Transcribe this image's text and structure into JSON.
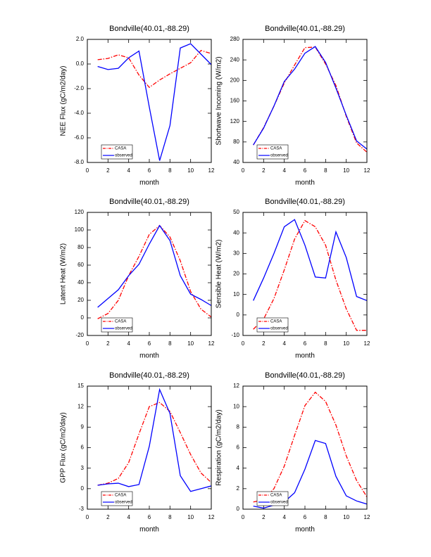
{
  "chart_data": [
    {
      "type": "line",
      "title": "Bondville(40.01,-88.29)",
      "x_label": "month",
      "y_label": "NEE Flux (gC/m2/day)",
      "x": [
        1,
        2,
        3,
        4,
        5,
        6,
        7,
        8,
        9,
        10,
        11,
        12
      ],
      "xlim": [
        0,
        12
      ],
      "xticks": [
        0,
        2,
        4,
        6,
        8,
        10,
        12
      ],
      "ylim": [
        -8,
        2
      ],
      "yticks": [
        {
          "value": -8,
          "label": "-8.0"
        },
        {
          "value": -6,
          "label": "-6.0"
        },
        {
          "value": -4,
          "label": "-4.0"
        },
        {
          "value": -2,
          "label": "-2.0"
        },
        {
          "value": 0,
          "label": "0.0"
        },
        {
          "value": 2,
          "label": "2.0"
        }
      ],
      "legend": "lower left",
      "series": [
        {
          "name": "CASA",
          "color": "#ff0000",
          "linestyle": "dashed",
          "values": [
            0.35,
            0.45,
            0.75,
            0.5,
            -0.9,
            -1.9,
            -1.3,
            -0.8,
            -0.35,
            0.1,
            1.1,
            0.85
          ]
        },
        {
          "name": "observed",
          "color": "#0000ff",
          "linestyle": "solid",
          "values": [
            -0.2,
            -0.45,
            -0.35,
            0.5,
            1.05,
            -3.5,
            -7.85,
            -5.0,
            1.3,
            1.65,
            0.8,
            -0.05
          ]
        }
      ]
    },
    {
      "type": "line",
      "title": "Bondville(40.01,-88.29)",
      "x_label": "month",
      "y_label": "Shortwave Incoming (W/m2)",
      "x": [
        1,
        2,
        3,
        4,
        5,
        6,
        7,
        8,
        9,
        10,
        11,
        12
      ],
      "xlim": [
        0,
        12
      ],
      "xticks": [
        0,
        2,
        4,
        6,
        8,
        10,
        12
      ],
      "ylim": [
        40,
        280
      ],
      "yticks": [
        40,
        80,
        120,
        160,
        200,
        240,
        280
      ],
      "legend": "lower left",
      "series": [
        {
          "name": "CASA",
          "color": "#ff0000",
          "linestyle": "dashed",
          "values": [
            74,
            108,
            150,
            195,
            230,
            264,
            265,
            232,
            190,
            130,
            78,
            60
          ]
        },
        {
          "name": "observed",
          "color": "#0000ff",
          "linestyle": "solid",
          "values": [
            74,
            107,
            150,
            198,
            222,
            253,
            266,
            235,
            185,
            132,
            82,
            66
          ]
        }
      ]
    },
    {
      "type": "line",
      "title": "Bondville(40.01,-88.29)",
      "x_label": "month",
      "y_label": "Latent Heat (W/m2)",
      "x": [
        1,
        2,
        3,
        4,
        5,
        6,
        7,
        8,
        9,
        10,
        11,
        12
      ],
      "xlim": [
        0,
        12
      ],
      "xticks": [
        0,
        2,
        4,
        6,
        8,
        10,
        12
      ],
      "ylim": [
        -20,
        120
      ],
      "yticks": [
        -20,
        0,
        20,
        40,
        60,
        80,
        100,
        120
      ],
      "legend": "lower left",
      "series": [
        {
          "name": "CASA",
          "color": "#ff0000",
          "linestyle": "dashed",
          "values": [
            -1,
            5,
            20,
            48,
            70,
            95,
            105,
            92,
            65,
            30,
            10,
            1
          ]
        },
        {
          "name": "observed",
          "color": "#0000ff",
          "linestyle": "solid",
          "values": [
            12,
            22,
            32,
            48,
            61,
            84,
            105,
            88,
            48,
            27,
            21,
            14
          ]
        }
      ]
    },
    {
      "type": "line",
      "title": "Bondville(40.01,-88.29)",
      "x_label": "month",
      "y_label": "Sensible Heat (W/m2)",
      "x": [
        1,
        2,
        3,
        4,
        5,
        6,
        7,
        8,
        9,
        10,
        11,
        12
      ],
      "xlim": [
        0,
        12
      ],
      "xticks": [
        0,
        2,
        4,
        6,
        8,
        10,
        12
      ],
      "ylim": [
        -10,
        50
      ],
      "yticks": [
        -10,
        0,
        10,
        20,
        30,
        40,
        50
      ],
      "legend": "lower left",
      "series": [
        {
          "name": "CASA",
          "color": "#ff0000",
          "linestyle": "dashed",
          "values": [
            -7,
            -2,
            8,
            22,
            37,
            46,
            43,
            34,
            17,
            3,
            -7.5,
            -7.5
          ]
        },
        {
          "name": "observed",
          "color": "#0000ff",
          "linestyle": "solid",
          "values": [
            7,
            18,
            30,
            43,
            46.5,
            34,
            18.5,
            18,
            40.5,
            28,
            9,
            7
          ]
        }
      ]
    },
    {
      "type": "line",
      "title": "Bondville(40.01,-88.29)",
      "x_label": "month",
      "y_label": "GPP Flux (gC/m2/day)",
      "x": [
        1,
        2,
        3,
        4,
        5,
        6,
        7,
        8,
        9,
        10,
        11,
        12
      ],
      "xlim": [
        0,
        12
      ],
      "xticks": [
        0,
        2,
        4,
        6,
        8,
        10,
        12
      ],
      "ylim": [
        -3,
        15
      ],
      "yticks": [
        -3,
        0,
        3,
        6,
        9,
        12,
        15
      ],
      "legend": "lower left",
      "series": [
        {
          "name": "CASA",
          "color": "#ff0000",
          "linestyle": "dashed",
          "values": [
            0.5,
            0.8,
            1.5,
            3.8,
            8,
            12,
            12.6,
            11.3,
            8.2,
            5,
            2.3,
            0.9
          ]
        },
        {
          "name": "observed",
          "color": "#0000ff",
          "linestyle": "solid",
          "values": [
            0.5,
            0.7,
            0.8,
            0.3,
            0.6,
            6.2,
            14.5,
            11,
            1.9,
            -0.4,
            0,
            0.4
          ]
        }
      ]
    },
    {
      "type": "line",
      "title": "Bondville(40.01,-88.29)",
      "x_label": "month",
      "y_label": "Respiration (gC/m2/day)",
      "x": [
        1,
        2,
        3,
        4,
        5,
        6,
        7,
        8,
        9,
        10,
        11,
        12
      ],
      "xlim": [
        0,
        12
      ],
      "xticks": [
        0,
        2,
        4,
        6,
        8,
        10,
        12
      ],
      "ylim": [
        0,
        12
      ],
      "yticks": [
        0,
        2,
        4,
        6,
        8,
        10,
        12
      ],
      "legend": "lower left",
      "series": [
        {
          "name": "CASA",
          "color": "#ff0000",
          "linestyle": "dashed",
          "values": [
            0.7,
            0.9,
            2,
            4.2,
            7.2,
            10.1,
            11.4,
            10.5,
            8.2,
            5.2,
            2.8,
            1.2
          ]
        },
        {
          "name": "observed",
          "color": "#0000ff",
          "linestyle": "solid",
          "values": [
            0.3,
            0.1,
            0.4,
            0.7,
            1.6,
            3.9,
            6.7,
            6.4,
            3.2,
            1.3,
            0.8,
            0.5
          ]
        }
      ]
    }
  ]
}
